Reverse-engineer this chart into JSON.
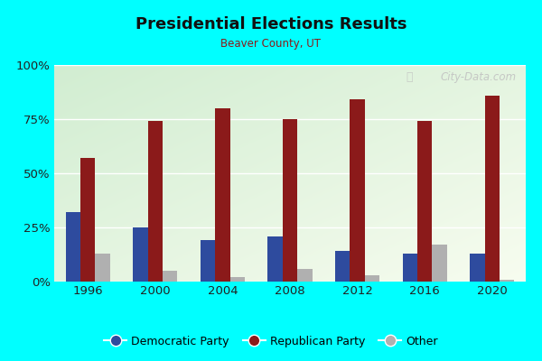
{
  "title": "Presidential Elections Results",
  "subtitle": "Beaver County, UT",
  "years": [
    1996,
    2000,
    2004,
    2008,
    2012,
    2016,
    2020
  ],
  "democratic": [
    32,
    25,
    19,
    21,
    14,
    13,
    13
  ],
  "republican": [
    57,
    74,
    80,
    75,
    84,
    74,
    86
  ],
  "other": [
    13,
    5,
    2,
    6,
    3,
    17,
    1
  ],
  "dem_color": "#2e4b9e",
  "rep_color": "#8b1a1a",
  "other_color": "#b0b0b0",
  "background_outer": "#00ffff",
  "watermark": "City-Data.com",
  "ylabel_ticks": [
    "0%",
    "25%",
    "50%",
    "75%",
    "100%"
  ],
  "ylabel_values": [
    0,
    25,
    50,
    75,
    100
  ],
  "bar_width": 0.22
}
